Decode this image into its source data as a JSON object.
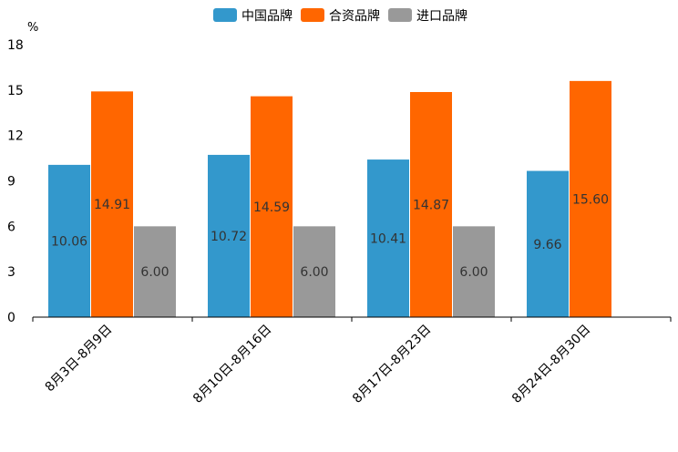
{
  "chart_data": {
    "type": "bar",
    "title": "",
    "xlabel": "",
    "ylabel": "",
    "unit": "%",
    "ylim": [
      0,
      18
    ],
    "yticks": [
      0,
      3,
      6,
      9,
      12,
      15,
      18
    ],
    "grid": false,
    "legend_position": "top-center",
    "categories": [
      "8月3日-8月9日",
      "8月10日-8月16日",
      "8月17日-8月23日",
      "8月24日-8月30日"
    ],
    "series": [
      {
        "name": "中国品牌",
        "color": "#3398CC",
        "values": [
          10.06,
          10.72,
          10.41,
          9.66
        ],
        "labels": [
          "10.06",
          "10.72",
          "10.41",
          "9.66"
        ]
      },
      {
        "name": "合资品牌",
        "color": "#FF6600",
        "values": [
          14.91,
          14.59,
          14.87,
          15.6
        ],
        "labels": [
          "14.91",
          "14.59",
          "14.87",
          "15.60"
        ]
      },
      {
        "name": "进口品牌",
        "color": "#999999",
        "values": [
          6.0,
          6.0,
          6.0,
          null
        ],
        "labels": [
          "6.00",
          "6.00",
          "6.00",
          null
        ]
      }
    ]
  }
}
